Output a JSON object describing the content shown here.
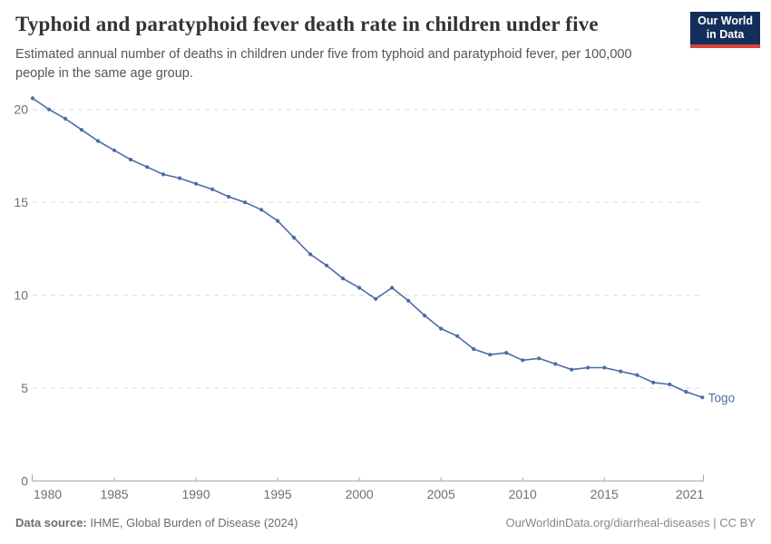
{
  "header": {
    "title": "Typhoid and paratyphoid fever death rate in children under five",
    "subtitle": "Estimated annual number of deaths in children under five from typhoid and paratyphoid fever, per 100,000\npeople in the same age group.",
    "logo": {
      "line1": "Our World",
      "line2": "in Data"
    }
  },
  "footer": {
    "data_source_label": "Data source:",
    "data_source_value": " IHME, Global Burden of Disease (2024)",
    "attribution_url": "OurWorldinData.org/diarrheal-diseases",
    "attribution_license": " | CC BY"
  },
  "colors": {
    "series_blue": "#4D6CA4",
    "logo_navy": "#132E5A",
    "logo_red": "#D6443C",
    "grid": "#DCDCDC",
    "axis": "#A6A6A6",
    "tick_text": "#6F6F6F"
  },
  "chart_data": {
    "type": "line",
    "title": "Typhoid and paratyphoid fever death rate in children under five",
    "xlabel": "",
    "ylabel": "",
    "x": [
      1980,
      1981,
      1982,
      1983,
      1984,
      1985,
      1986,
      1987,
      1988,
      1989,
      1990,
      1991,
      1992,
      1993,
      1994,
      1995,
      1996,
      1997,
      1998,
      1999,
      2000,
      2001,
      2002,
      2003,
      2004,
      2005,
      2006,
      2007,
      2008,
      2009,
      2010,
      2011,
      2012,
      2013,
      2014,
      2015,
      2016,
      2017,
      2018,
      2019,
      2020,
      2021
    ],
    "series": [
      {
        "name": "Togo",
        "color": "#4D6CA4",
        "values": [
          20.6,
          20.0,
          19.5,
          18.9,
          18.3,
          17.8,
          17.3,
          16.9,
          16.5,
          16.3,
          16.0,
          15.7,
          15.3,
          15.0,
          14.6,
          14.0,
          13.1,
          12.2,
          11.6,
          10.9,
          10.4,
          9.8,
          10.4,
          9.7,
          8.9,
          8.2,
          7.8,
          7.1,
          6.8,
          6.9,
          6.5,
          6.6,
          6.3,
          6.0,
          6.1,
          6.1,
          5.9,
          5.7,
          5.3,
          5.2,
          4.8,
          4.5
        ]
      }
    ],
    "x_ticks": [
      1980,
      1985,
      1990,
      1995,
      2000,
      2005,
      2010,
      2015,
      2021
    ],
    "y_ticks": [
      0,
      5,
      10,
      15,
      20
    ],
    "xlim": [
      1980,
      2021
    ],
    "ylim": [
      0,
      21
    ],
    "grid": "horizontal-dashed",
    "legend_position": "end-of-line-label",
    "end_label": "Togo"
  }
}
